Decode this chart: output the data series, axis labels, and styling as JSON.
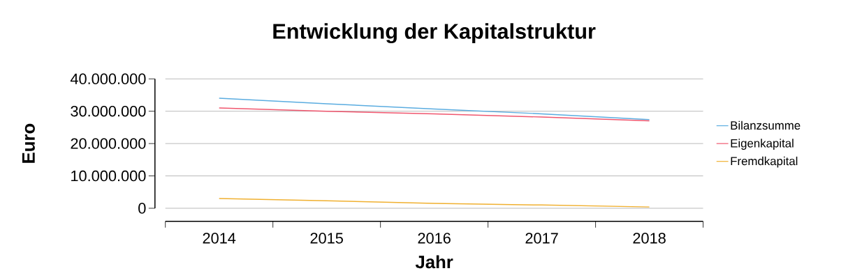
{
  "chart_data": {
    "type": "line",
    "title": "Entwicklung der Kapitalstruktur",
    "xlabel": "Jahr",
    "ylabel": "Euro",
    "categories": [
      "2014",
      "2015",
      "2016",
      "2017",
      "2018"
    ],
    "series": [
      {
        "name": "Bilanzsumme",
        "color": "#5aace0",
        "values": [
          34000000,
          32300000,
          30700000,
          29200000,
          27400000
        ]
      },
      {
        "name": "Eigenkapital",
        "color": "#f0566e",
        "values": [
          31000000,
          30000000,
          29200000,
          28200000,
          27000000
        ]
      },
      {
        "name": "Fremdkapital",
        "color": "#f0b030",
        "values": [
          3000000,
          2300000,
          1500000,
          1000000,
          400000
        ]
      }
    ],
    "ylim": [
      0,
      40000000
    ],
    "yticks": [
      {
        "value": 0,
        "label": "0"
      },
      {
        "value": 10000000,
        "label": "10.000.000"
      },
      {
        "value": 20000000,
        "label": "20.000.000"
      },
      {
        "value": 30000000,
        "label": "30.000.000"
      },
      {
        "value": 40000000,
        "label": "40.000.000"
      }
    ],
    "grid": "y",
    "legend": "right",
    "marker": "none",
    "line_style": "solid"
  }
}
